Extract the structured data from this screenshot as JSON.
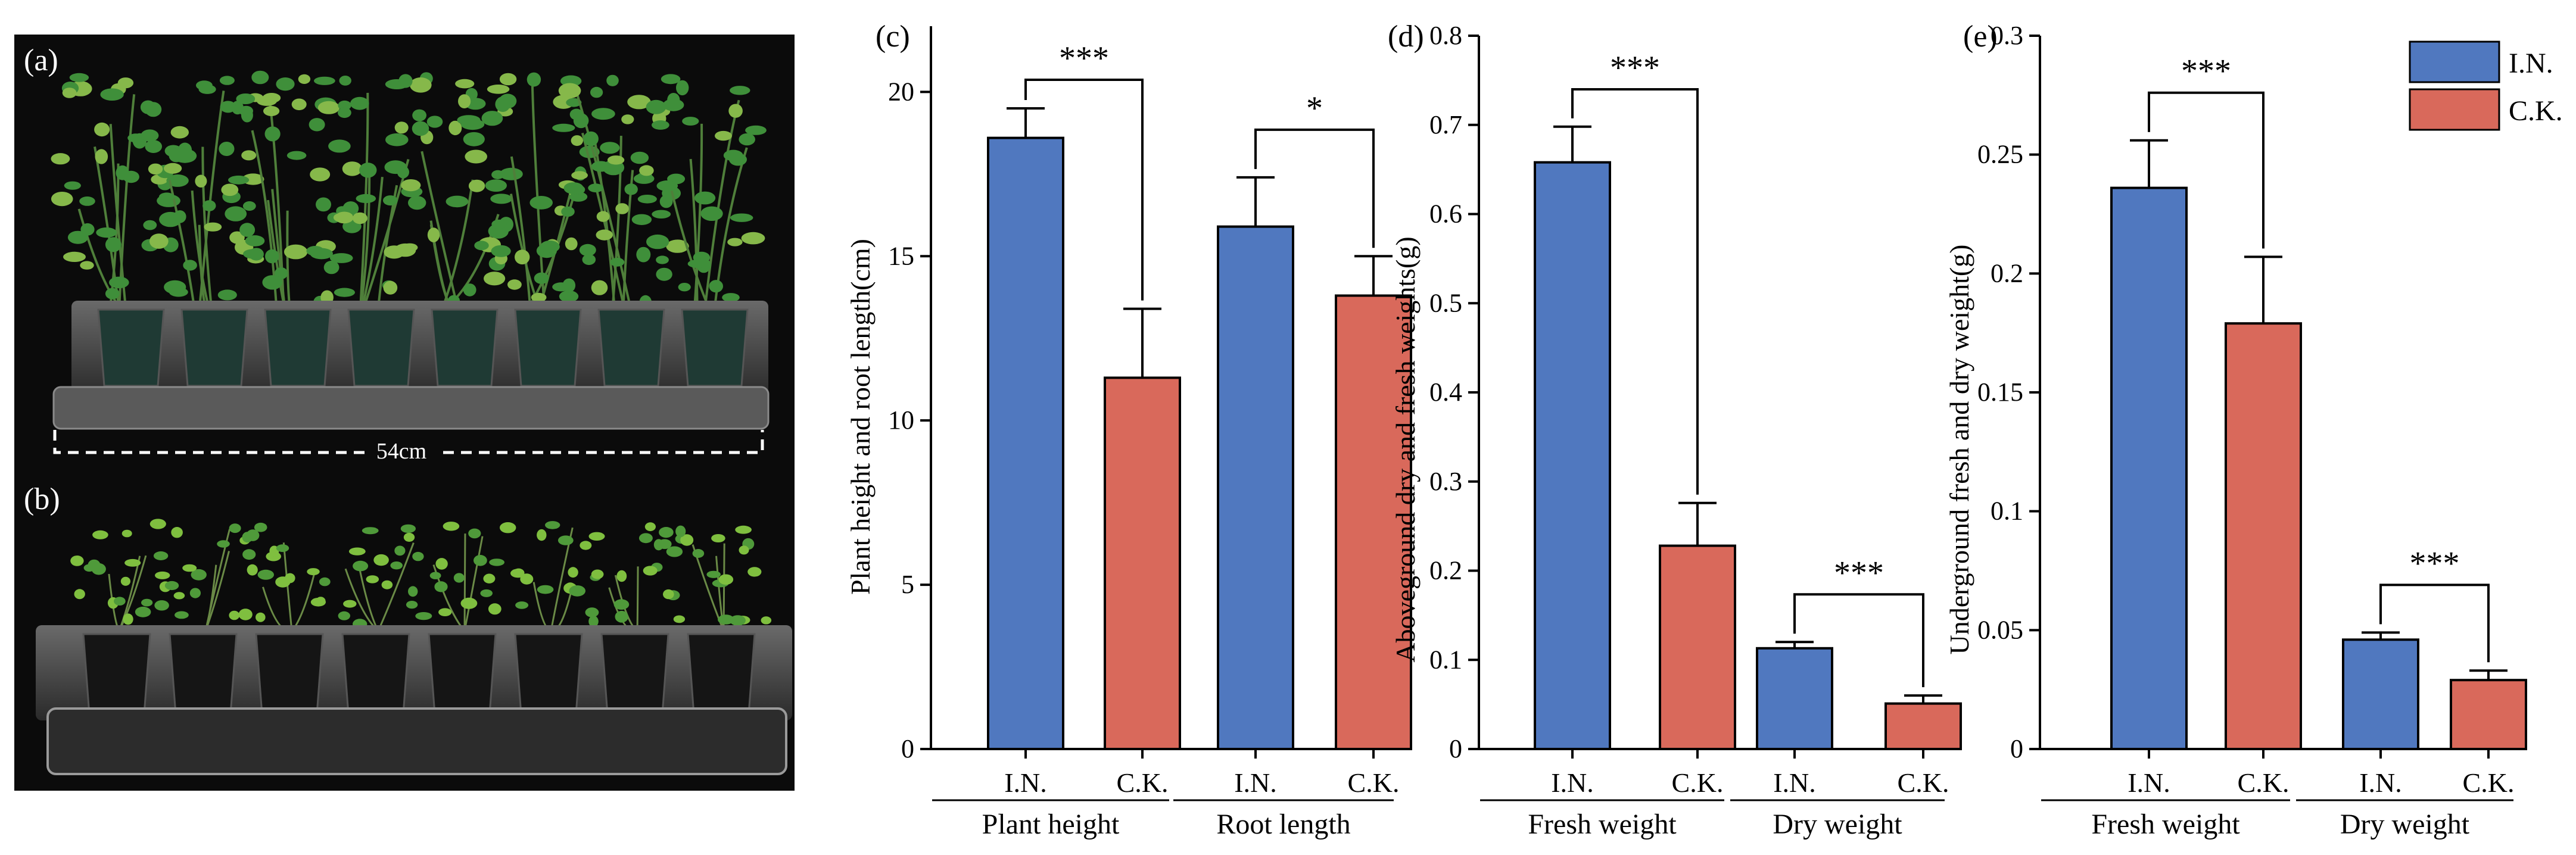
{
  "colors": {
    "in": "#5078bf",
    "ck": "#d9695b",
    "photo_bg": "#0b0b0b",
    "tray": "#3a3a3a",
    "leaf": "#3f8f3a",
    "leaf_light": "#86b84a"
  },
  "photos": {
    "panel_a_label": "(a)",
    "panel_b_label": "(b)",
    "scale_label": "54cm"
  },
  "legend": {
    "in_label": "I.N.",
    "ck_label": "C.K."
  },
  "chart_data": [
    {
      "panel": "(c)",
      "type": "bar",
      "ylabel": "Plant height and root length(cm)",
      "ylim": [
        0,
        22
      ],
      "yticks": [
        "0",
        "5",
        "10",
        "15",
        "20"
      ],
      "ytick_values": [
        0,
        5,
        10,
        15,
        20
      ],
      "groups": [
        {
          "name": "Plant height",
          "bars": [
            {
              "label": "I.N.",
              "series": "in",
              "value": 18.6,
              "err": 0.9
            },
            {
              "label": "C.K.",
              "series": "ck",
              "value": 11.3,
              "err": 2.1
            }
          ],
          "sig": "***"
        },
        {
          "name": "Root length",
          "bars": [
            {
              "label": "I.N.",
              "series": "in",
              "value": 15.9,
              "err": 1.5
            },
            {
              "label": "C.K.",
              "series": "ck",
              "value": 13.8,
              "err": 1.2
            }
          ],
          "sig": "*"
        }
      ]
    },
    {
      "panel": "(d)",
      "type": "bar",
      "ylabel": "Aboveground dry and fresh weights(g)",
      "ylim": [
        0,
        0.8
      ],
      "yticks": [
        "0",
        "0.1",
        "0.2",
        "0.3",
        "0.4",
        "0.5",
        "0.6",
        "0.7",
        "0.8"
      ],
      "ytick_values": [
        0,
        0.1,
        0.2,
        0.3,
        0.4,
        0.5,
        0.6,
        0.7,
        0.8
      ],
      "groups": [
        {
          "name": "Fresh weight",
          "bars": [
            {
              "label": "I.N.",
              "series": "in",
              "value": 0.658,
              "err": 0.04
            },
            {
              "label": "C.K.",
              "series": "ck",
              "value": 0.228,
              "err": 0.048
            }
          ],
          "sig": "***"
        },
        {
          "name": "Dry weight",
          "bars": [
            {
              "label": "I.N.",
              "series": "in",
              "value": 0.113,
              "err": 0.007
            },
            {
              "label": "C.K.",
              "series": "ck",
              "value": 0.051,
              "err": 0.009
            }
          ],
          "sig": "***"
        }
      ]
    },
    {
      "panel": "(e)",
      "type": "bar",
      "ylabel": "Underground fresh and dry weight(g)",
      "ylim": [
        0,
        0.3
      ],
      "yticks": [
        "0",
        "0.05",
        "0.1",
        "0.15",
        "0.2",
        "0.25",
        "0.3"
      ],
      "ytick_values": [
        0,
        0.05,
        0.1,
        0.15,
        0.2,
        0.25,
        0.3
      ],
      "groups": [
        {
          "name": "Fresh weight",
          "bars": [
            {
              "label": "I.N.",
              "series": "in",
              "value": 0.236,
              "err": 0.02
            },
            {
              "label": "C.K.",
              "series": "ck",
              "value": 0.179,
              "err": 0.028
            }
          ],
          "sig": "***"
        },
        {
          "name": "Dry weight",
          "bars": [
            {
              "label": "I.N.",
              "series": "in",
              "value": 0.046,
              "err": 0.003
            },
            {
              "label": "C.K.",
              "series": "ck",
              "value": 0.029,
              "err": 0.004
            }
          ],
          "sig": "***"
        }
      ]
    }
  ]
}
